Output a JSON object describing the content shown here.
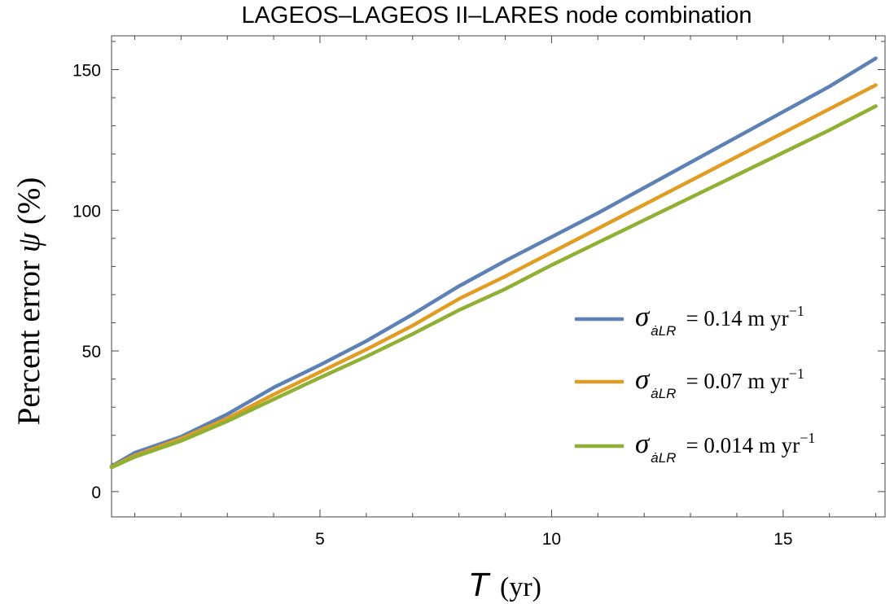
{
  "chart_data": {
    "type": "line",
    "title": "LAGEOS–LAGEOS II–LARES node combination",
    "xlabel": {
      "symbol": "T",
      "unit": "(yr)"
    },
    "ylabel": {
      "text": "Percent error",
      "symbol": "ψ",
      "unit": "(%)"
    },
    "xlim": [
      0.5,
      17.2
    ],
    "ylim": [
      -9,
      162
    ],
    "xticks": [
      5,
      10,
      15
    ],
    "yticks": [
      0,
      50,
      100,
      150
    ],
    "grid": false,
    "legend_position": "lower-right",
    "series": [
      {
        "name": "σ = 0.14 m yr⁻¹",
        "legend": {
          "symbol": "σ",
          "sub": "ȧ",
          "sub2": "LR",
          "value": "= 0.14 m yr",
          "exp": "−1"
        },
        "color": "#5e81b5",
        "x": [
          0.5,
          1.0,
          2.0,
          3.0,
          4.0,
          5.0,
          6.0,
          7.0,
          8.0,
          9.0,
          10.0,
          11.0,
          12.0,
          13.0,
          14.0,
          15.0,
          16.0,
          17.0
        ],
        "y": [
          9.0,
          13.8,
          19.5,
          27.5,
          37.0,
          45.0,
          53.5,
          63.0,
          73.0,
          82.0,
          90.5,
          99.0,
          108.0,
          117.0,
          126.0,
          135.0,
          144.0,
          154.0
        ]
      },
      {
        "name": "σ = 0.07 m yr⁻¹",
        "legend": {
          "symbol": "σ",
          "sub": "ȧ",
          "sub2": "LR",
          "value": "= 0.07 m yr",
          "exp": "−1"
        },
        "color": "#e19c24",
        "x": [
          0.5,
          1.0,
          2.0,
          3.0,
          4.0,
          5.0,
          6.0,
          7.0,
          8.0,
          9.0,
          10.0,
          11.0,
          12.0,
          13.0,
          14.0,
          15.0,
          16.0,
          17.0
        ],
        "y": [
          8.8,
          12.8,
          18.8,
          26.0,
          34.5,
          42.5,
          50.5,
          59.0,
          68.5,
          76.5,
          85.0,
          93.5,
          102.0,
          110.5,
          119.0,
          127.5,
          136.0,
          144.5
        ]
      },
      {
        "name": "σ = 0.014 m yr⁻¹",
        "legend": {
          "symbol": "σ",
          "sub": "ȧ",
          "sub2": "LR",
          "value": "= 0.014 m yr",
          "exp": "−1"
        },
        "color": "#8fb032",
        "x": [
          0.5,
          1.0,
          2.0,
          3.0,
          4.0,
          5.0,
          6.0,
          7.0,
          8.0,
          9.0,
          10.0,
          11.0,
          12.0,
          13.0,
          14.0,
          15.0,
          16.0,
          17.0
        ],
        "y": [
          8.6,
          12.3,
          18.0,
          25.0,
          32.8,
          40.5,
          48.0,
          56.0,
          64.5,
          72.0,
          80.5,
          88.5,
          96.5,
          104.5,
          112.5,
          120.5,
          128.5,
          137.0
        ]
      }
    ]
  }
}
